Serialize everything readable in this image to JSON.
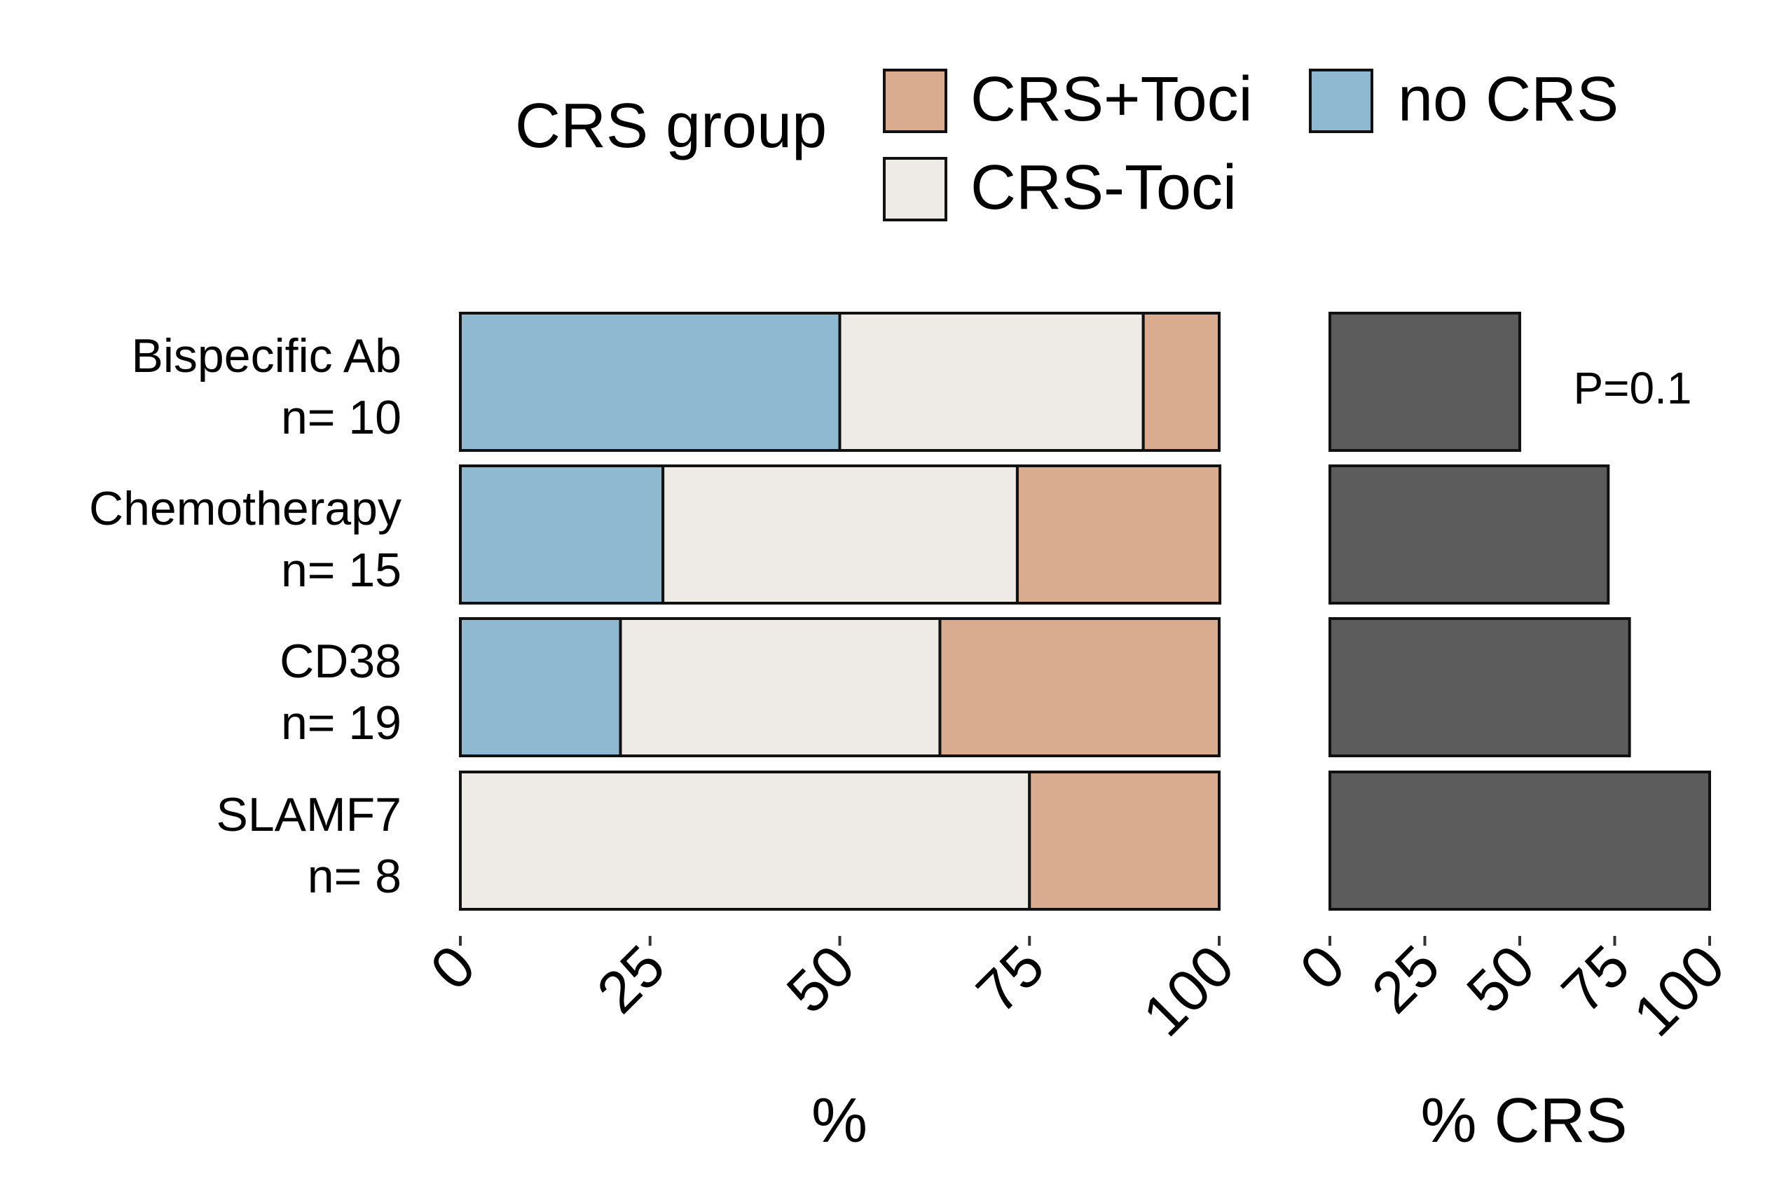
{
  "chart_data": [
    {
      "type": "bar",
      "orientation": "horizontal",
      "stacked": true,
      "categories": [
        "Bispecific Ab",
        "Chemotherapy",
        "CD38",
        "SLAMF7"
      ],
      "category_counts": [
        "n= 10",
        "n= 15",
        "n= 19",
        "n= 8"
      ],
      "series": [
        {
          "name": "no CRS",
          "color": "#8FB9D0",
          "values": [
            50,
            26.7,
            21.1,
            0
          ]
        },
        {
          "name": "CRS-Toci",
          "color": "#EEEAE6",
          "values": [
            40,
            46.7,
            42.1,
            75
          ]
        },
        {
          "name": "CRS+Toci",
          "color": "#DAAC8F",
          "values": [
            10,
            26.7,
            36.8,
            25
          ]
        }
      ],
      "xlabel": "%",
      "xlim": [
        0,
        100
      ],
      "xticks": [
        "0",
        "25",
        "50",
        "75",
        "100"
      ],
      "legend": {
        "title": "CRS group",
        "position": "top",
        "entries": [
          "CRS+Toci",
          "no CRS",
          "CRS-Toci"
        ]
      },
      "grid": false
    },
    {
      "type": "bar",
      "orientation": "horizontal",
      "categories": [
        "Bispecific Ab",
        "Chemotherapy",
        "CD38",
        "SLAMF7"
      ],
      "values": [
        50,
        73.3,
        78.9,
        100
      ],
      "color": "#5C5C5C",
      "xlabel": "% CRS",
      "xlim": [
        0,
        100
      ],
      "xticks": [
        "0",
        "25",
        "50",
        "75",
        "100"
      ],
      "annotation": "P=0.1",
      "grid": false
    }
  ]
}
